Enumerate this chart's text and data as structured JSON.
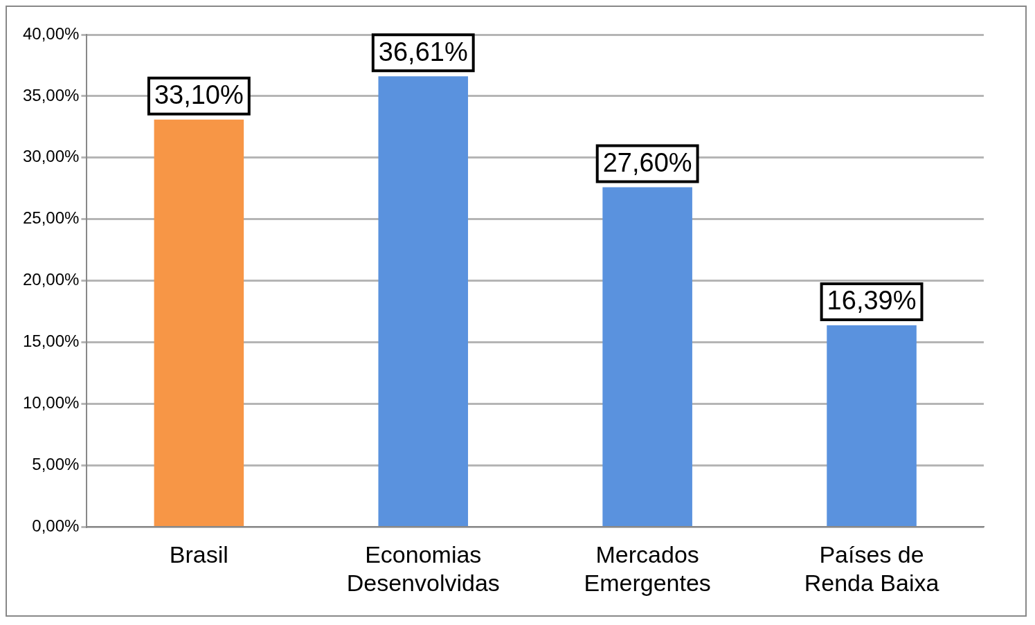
{
  "chart_data": {
    "type": "bar",
    "categories": [
      "Brasil",
      "Economias Desenvolvidas",
      "Mercados Emergentes",
      "Países de Renda Baixa"
    ],
    "values": [
      33.1,
      36.61,
      27.6,
      16.39
    ],
    "colors": [
      "#f79646",
      "#5a92de",
      "#5a92de",
      "#5a92de"
    ],
    "value_labels": [
      "33,10%",
      "36,61%",
      "27,60%",
      "16,39%"
    ],
    "ylim": [
      0,
      40
    ],
    "yticks": [
      {
        "value": 0,
        "label": "0,00%"
      },
      {
        "value": 5,
        "label": "5,00%"
      },
      {
        "value": 10,
        "label": "10,00%"
      },
      {
        "value": 15,
        "label": "15,00%"
      },
      {
        "value": 20,
        "label": "20,00%"
      },
      {
        "value": 25,
        "label": "25,00%"
      },
      {
        "value": 30,
        "label": "30,00%"
      },
      {
        "value": 35,
        "label": "35,00%"
      },
      {
        "value": 40,
        "label": "40,00%"
      }
    ],
    "grid": "y",
    "legend": false
  }
}
